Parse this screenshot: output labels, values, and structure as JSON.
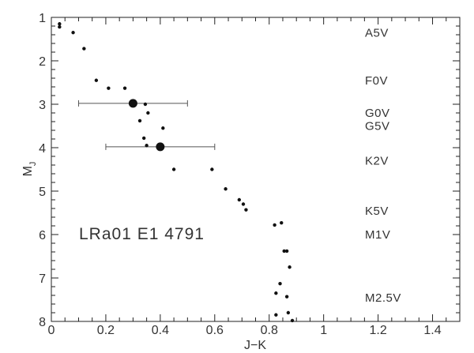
{
  "chart_data": {
    "type": "scatter",
    "title": "",
    "xlabel": "J−K",
    "ylabel": {
      "main": "M",
      "sub": "J"
    },
    "xlim": [
      0,
      1.5
    ],
    "ylim": [
      8,
      1
    ],
    "y_inverted": true,
    "x_ticks": [
      "0",
      "0.2",
      "0.4",
      "0.6",
      "0.8",
      "1",
      "1.2",
      "1.4"
    ],
    "x_tick_values": [
      0,
      0.2,
      0.4,
      0.6,
      0.8,
      1.0,
      1.2,
      1.4
    ],
    "y_ticks": [
      "1",
      "2",
      "3",
      "4",
      "5",
      "6",
      "7",
      "8"
    ],
    "y_tick_values": [
      1,
      2,
      3,
      4,
      5,
      6,
      7,
      8
    ],
    "grid": false,
    "series": [
      {
        "points": [
          [
            0.03,
            1.15
          ],
          [
            0.03,
            1.22
          ],
          [
            0.08,
            1.35
          ],
          [
            0.12,
            1.72
          ],
          [
            0.165,
            2.45
          ],
          [
            0.21,
            2.63
          ],
          [
            0.27,
            2.63
          ],
          [
            0.345,
            3.0
          ],
          [
            0.355,
            3.2
          ],
          [
            0.325,
            3.38
          ],
          [
            0.41,
            3.55
          ],
          [
            0.34,
            3.78
          ],
          [
            0.35,
            3.95
          ],
          [
            0.45,
            4.5
          ],
          [
            0.59,
            4.5
          ],
          [
            0.64,
            4.95
          ],
          [
            0.69,
            5.2
          ],
          [
            0.705,
            5.3
          ],
          [
            0.715,
            5.43
          ],
          [
            0.82,
            5.78
          ],
          [
            0.845,
            5.73
          ],
          [
            0.855,
            6.38
          ],
          [
            0.865,
            6.38
          ],
          [
            0.875,
            6.75
          ],
          [
            0.84,
            7.13
          ],
          [
            0.825,
            7.35
          ],
          [
            0.865,
            7.43
          ],
          [
            0.87,
            7.8
          ],
          [
            0.825,
            7.85
          ],
          [
            0.885,
            7.98
          ]
        ]
      },
      {
        "points": [
          {
            "x": 0.3,
            "y": 2.98,
            "xerr": [
              0.1,
              0.5
            ]
          },
          {
            "x": 0.4,
            "y": 3.98,
            "xerr": [
              0.2,
              0.6
            ]
          }
        ]
      }
    ],
    "spectral_labels": [
      {
        "text": "A5V",
        "y": 1.35
      },
      {
        "text": "F0V",
        "y": 2.45
      },
      {
        "text": "G0V",
        "y": 3.2
      },
      {
        "text": "G5V",
        "y": 3.5
      },
      {
        "text": "K2V",
        "y": 4.3
      },
      {
        "text": "K5V",
        "y": 5.45
      },
      {
        "text": "M1V",
        "y": 6.0
      },
      {
        "text": "M2.5V",
        "y": 7.45
      }
    ],
    "annotation": "LRa01 E1 4791"
  }
}
